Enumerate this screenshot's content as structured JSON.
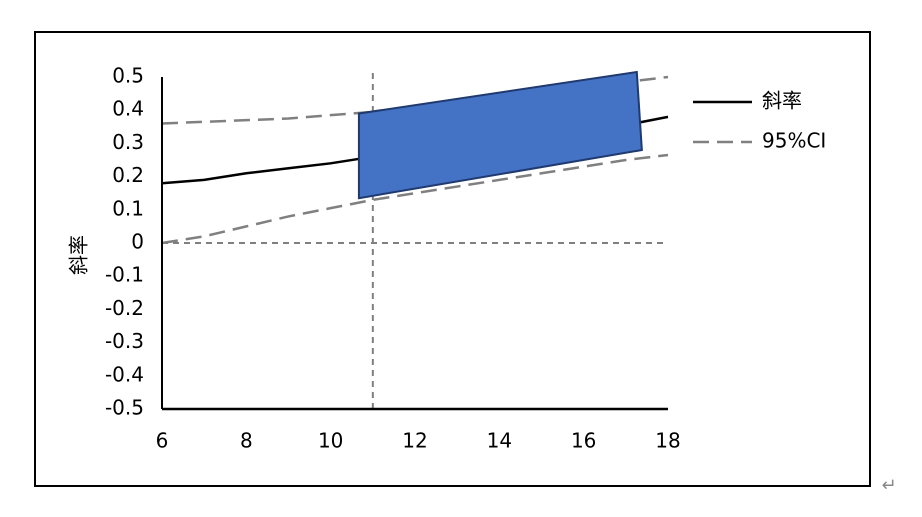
{
  "chart_data": {
    "type": "line",
    "y_label": "斜率",
    "x": [
      6,
      7,
      8,
      9,
      10,
      11,
      12,
      13,
      14,
      15,
      16,
      17,
      18
    ],
    "series": [
      {
        "name": "斜率",
        "color": "#000000",
        "style": "solid",
        "values": [
          0.18,
          0.19,
          0.21,
          0.225,
          0.24,
          0.26,
          0.275,
          0.29,
          0.305,
          0.32,
          0.335,
          0.355,
          0.38
        ]
      },
      {
        "name": "95%CI",
        "color": "#808080",
        "style": "dashed",
        "upper": [
          0.36,
          0.365,
          0.37,
          0.375,
          0.385,
          0.395,
          0.41,
          0.425,
          0.44,
          0.455,
          0.47,
          0.485,
          0.5
        ],
        "lower": [
          0,
          0.02,
          0.05,
          0.08,
          0.105,
          0.13,
          0.15,
          0.17,
          0.19,
          0.21,
          0.23,
          0.25,
          0.265
        ]
      }
    ],
    "region": {
      "color": "#4472c4",
      "x": [
        10.67,
        17.26,
        17.38,
        10.67
      ],
      "y": [
        0.39,
        0.515,
        0.28,
        0.135
      ]
    },
    "reference_lines": {
      "x": 11,
      "y": 0
    },
    "xlim": [
      6,
      18
    ],
    "xticks": [
      6,
      8,
      10,
      12,
      14,
      16,
      18
    ],
    "ylim": [
      -0.5,
      0.5
    ],
    "yticks": [
      -0.5,
      -0.4,
      -0.3,
      -0.2,
      -0.1,
      0,
      0.1,
      0.2,
      0.3,
      0.4,
      0.5
    ],
    "grid": false,
    "legend": "right",
    "paragraph_mark": "↵"
  }
}
